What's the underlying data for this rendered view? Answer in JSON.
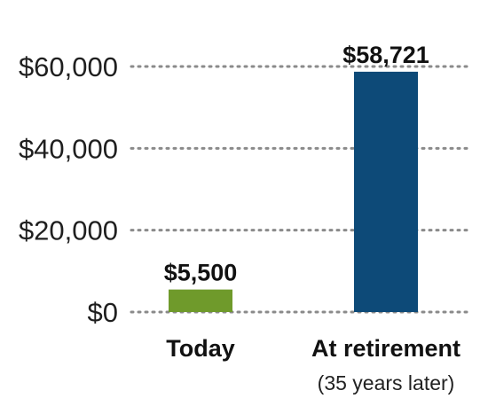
{
  "chart_data": {
    "type": "bar",
    "categories": [
      "Today",
      "At retirement"
    ],
    "category_sublabels": [
      "",
      "(35 years later)"
    ],
    "values": [
      5500,
      58721
    ],
    "value_labels": [
      "$5,500",
      "$58,721"
    ],
    "y_ticks": [
      0,
      20000,
      40000,
      60000
    ],
    "y_tick_labels": [
      "$0",
      "$20,000",
      "$40,000",
      "$60,000"
    ],
    "ylim": [
      0,
      60000
    ],
    "grid": true,
    "title": "",
    "xlabel": "",
    "ylabel": "",
    "bar_colors": [
      "#6f9a2b",
      "#0d4a78"
    ]
  }
}
